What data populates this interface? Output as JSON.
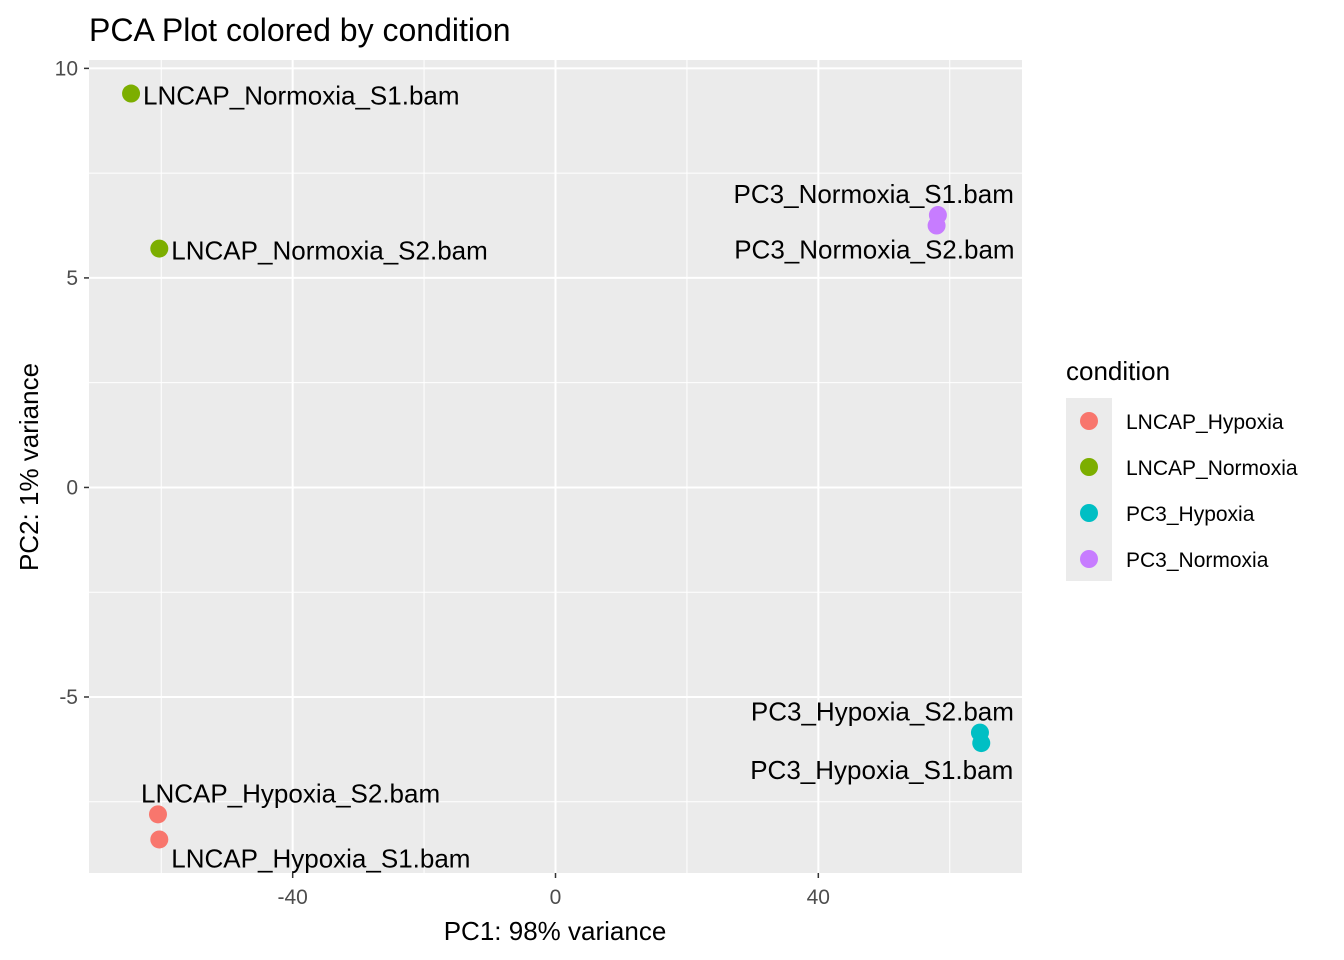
{
  "chart_data": {
    "type": "scatter",
    "title": "PCA Plot colored by condition",
    "xlabel": "PC1: 98% variance",
    "ylabel": "PC2: 1% variance",
    "xlim": [
      -71,
      71
    ],
    "ylim": [
      -9.2,
      10.2
    ],
    "x_ticks": [
      -40,
      0,
      40
    ],
    "x_tick_labels": [
      "-40",
      "0",
      "40"
    ],
    "y_ticks": [
      -5,
      0,
      5,
      10
    ],
    "y_tick_labels": [
      "-5",
      "0",
      "5",
      "10"
    ],
    "grid": true,
    "legend_title": "condition",
    "legend_position": "right",
    "series": [
      {
        "name": "LNCAP_Hypoxia",
        "color": "#F8766D",
        "points": [
          {
            "label": "LNCAP_Hypoxia_S2.bam",
            "x": -60.5,
            "y": -7.8
          },
          {
            "label": "LNCAP_Hypoxia_S1.bam",
            "x": -60.3,
            "y": -8.4
          }
        ]
      },
      {
        "name": "LNCAP_Normoxia",
        "color": "#7CAE00",
        "points": [
          {
            "label": "LNCAP_Normoxia_S1.bam",
            "x": -64.6,
            "y": 9.4
          },
          {
            "label": "LNCAP_Normoxia_S2.bam",
            "x": -60.3,
            "y": 5.7
          }
        ]
      },
      {
        "name": "PC3_Hypoxia",
        "color": "#00BFC4",
        "points": [
          {
            "label": "PC3_Hypoxia_S2.bam",
            "x": 64.6,
            "y": -5.85
          },
          {
            "label": "PC3_Hypoxia_S1.bam",
            "x": 64.8,
            "y": -6.1
          }
        ]
      },
      {
        "name": "PC3_Normoxia",
        "color": "#C77CFF",
        "points": [
          {
            "label": "PC3_Normoxia_S1.bam",
            "x": 58.2,
            "y": 6.5
          },
          {
            "label": "PC3_Normoxia_S2.bam",
            "x": 58.0,
            "y": 6.25
          }
        ]
      }
    ]
  },
  "colors": {
    "panel_background": "#EBEBEB",
    "grid_major": "#FFFFFF",
    "legend_key_background": "#EBEBEB",
    "tick_label": "#4D4D4D"
  }
}
